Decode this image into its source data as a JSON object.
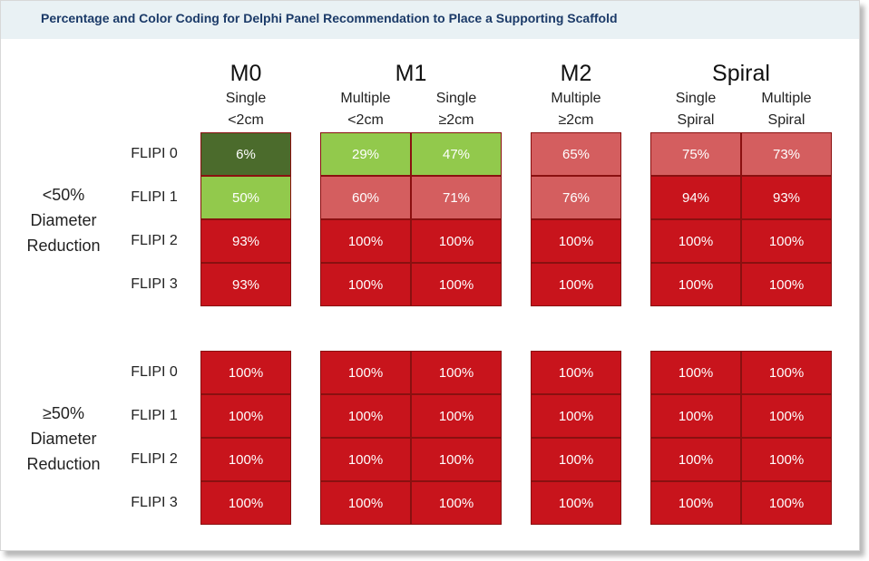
{
  "title": "Percentage and Color Coding for Delphi Panel Recommendation to Place a Supporting Scaffold",
  "colors": {
    "dark_green": "#4b6b2c",
    "light_green": "#92c94c",
    "pink": "#d45e5f",
    "red": "#c8141c",
    "cell_border": "#8a1010"
  },
  "chart_data": {
    "type": "heatmap",
    "title": "Percentage and Color Coding for Delphi Panel Recommendation to Place a Supporting Scaffold",
    "groups": [
      {
        "name": "M0",
        "columns": [
          {
            "line1": "Single",
            "line2": "<2cm"
          }
        ]
      },
      {
        "name": "M1",
        "columns": [
          {
            "line1": "Multiple",
            "line2": "<2cm"
          },
          {
            "line1": "Single",
            "line2": "≥2cm"
          }
        ]
      },
      {
        "name": "M2",
        "columns": [
          {
            "line1": "Multiple",
            "line2": "≥2cm"
          }
        ]
      },
      {
        "name": "Spiral",
        "columns": [
          {
            "line1": "Single",
            "line2": "Spiral"
          },
          {
            "line1": "Multiple",
            "line2": "Spiral"
          }
        ]
      }
    ],
    "row_labels": [
      "FLIPI 0",
      "FLIPI 1",
      "FLIPI 2",
      "FLIPI 3"
    ],
    "sections": [
      {
        "label_lines": [
          "<50%",
          "Diameter",
          "Reduction"
        ],
        "values": [
          [
            6,
            29,
            47,
            65,
            75,
            73
          ],
          [
            50,
            60,
            71,
            76,
            94,
            93
          ],
          [
            93,
            100,
            100,
            100,
            100,
            100
          ],
          [
            93,
            100,
            100,
            100,
            100,
            100
          ]
        ],
        "colors": [
          [
            "dark_green",
            "light_green",
            "light_green",
            "pink",
            "pink",
            "pink"
          ],
          [
            "light_green",
            "pink",
            "pink",
            "pink",
            "red",
            "red"
          ],
          [
            "red",
            "red",
            "red",
            "red",
            "red",
            "red"
          ],
          [
            "red",
            "red",
            "red",
            "red",
            "red",
            "red"
          ]
        ]
      },
      {
        "label_lines": [
          "≥50%",
          "Diameter",
          "Reduction"
        ],
        "values": [
          [
            100,
            100,
            100,
            100,
            100,
            100
          ],
          [
            100,
            100,
            100,
            100,
            100,
            100
          ],
          [
            100,
            100,
            100,
            100,
            100,
            100
          ],
          [
            100,
            100,
            100,
            100,
            100,
            100
          ]
        ],
        "colors": [
          [
            "red",
            "red",
            "red",
            "red",
            "red",
            "red"
          ],
          [
            "red",
            "red",
            "red",
            "red",
            "red",
            "red"
          ],
          [
            "red",
            "red",
            "red",
            "red",
            "red",
            "red"
          ],
          [
            "red",
            "red",
            "red",
            "red",
            "red",
            "red"
          ]
        ]
      }
    ],
    "value_suffix": "%"
  }
}
